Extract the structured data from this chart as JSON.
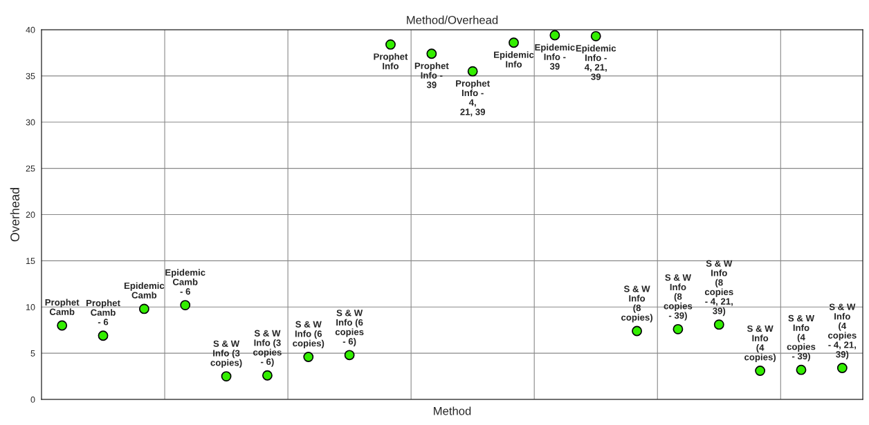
{
  "chart_data": {
    "type": "scatter",
    "title": "Method/Overhead",
    "xlabel": "Method",
    "ylabel": "Overhead",
    "categories": [
      null,
      null,
      null,
      null,
      null,
      null,
      null,
      null,
      null,
      null,
      null,
      null,
      null,
      null,
      null,
      null,
      null,
      null,
      null,
      null
    ],
    "series": [
      {
        "name": "Prophet\nCamb",
        "color": "#33ee00",
        "values": [
          8.0,
          null,
          null,
          null,
          null,
          null,
          null,
          null,
          null,
          null,
          null,
          null,
          null,
          null,
          null,
          null,
          null,
          null,
          null,
          null
        ]
      },
      {
        "name": "Prophet\nCamb\n- 6",
        "color": "#33ee00",
        "values": [
          null,
          6.9,
          null,
          null,
          null,
          null,
          null,
          null,
          null,
          null,
          null,
          null,
          null,
          null,
          null,
          null,
          null,
          null,
          null,
          null
        ]
      },
      {
        "name": "Epidemic\nCamb",
        "color": "#33ee00",
        "values": [
          null,
          null,
          9.8,
          null,
          null,
          null,
          null,
          null,
          null,
          null,
          null,
          null,
          null,
          null,
          null,
          null,
          null,
          null,
          null,
          null
        ]
      },
      {
        "name": "Epidemic\nCamb\n- 6",
        "color": "#33ee00",
        "values": [
          null,
          null,
          null,
          10.2,
          null,
          null,
          null,
          null,
          null,
          null,
          null,
          null,
          null,
          null,
          null,
          null,
          null,
          null,
          null,
          null
        ]
      },
      {
        "name": "S & W\nInfo (3\ncopies)",
        "color": "#33ee00",
        "values": [
          null,
          null,
          null,
          null,
          2.5,
          null,
          null,
          null,
          null,
          null,
          null,
          null,
          null,
          null,
          null,
          null,
          null,
          null,
          null,
          null
        ]
      },
      {
        "name": "S & W\nInfo (3\ncopies\n- 6)",
        "color": "#33ee00",
        "values": [
          null,
          null,
          null,
          null,
          null,
          2.6,
          null,
          null,
          null,
          null,
          null,
          null,
          null,
          null,
          null,
          null,
          null,
          null,
          null,
          null
        ]
      },
      {
        "name": "S & W\nInfo (6\ncopies)",
        "color": "#33ee00",
        "values": [
          null,
          null,
          null,
          null,
          null,
          null,
          4.6,
          null,
          null,
          null,
          null,
          null,
          null,
          null,
          null,
          null,
          null,
          null,
          null,
          null
        ]
      },
      {
        "name": "S & W\nInfo (6\ncopies\n- 6)",
        "color": "#33ee00",
        "values": [
          null,
          null,
          null,
          null,
          null,
          null,
          null,
          4.8,
          null,
          null,
          null,
          null,
          null,
          null,
          null,
          null,
          null,
          null,
          null,
          null
        ]
      },
      {
        "name": "Prophet\nInfo",
        "color": "#33ee00",
        "values": [
          null,
          null,
          null,
          null,
          null,
          null,
          null,
          null,
          38.4,
          null,
          null,
          null,
          null,
          null,
          null,
          null,
          null,
          null,
          null,
          null
        ]
      },
      {
        "name": "Prophet\nInfo -\n39",
        "color": "#33ee00",
        "values": [
          null,
          null,
          null,
          null,
          null,
          null,
          null,
          null,
          null,
          37.4,
          null,
          null,
          null,
          null,
          null,
          null,
          null,
          null,
          null,
          null
        ]
      },
      {
        "name": "Prophet\nInfo -\n4,\n21, 39",
        "color": "#33ee00",
        "values": [
          null,
          null,
          null,
          null,
          null,
          null,
          null,
          null,
          null,
          null,
          35.5,
          null,
          null,
          null,
          null,
          null,
          null,
          null,
          null,
          null
        ]
      },
      {
        "name": "Epidemic\nInfo",
        "color": "#33ee00",
        "values": [
          null,
          null,
          null,
          null,
          null,
          null,
          null,
          null,
          null,
          null,
          null,
          38.6,
          null,
          null,
          null,
          null,
          null,
          null,
          null,
          null
        ]
      },
      {
        "name": "Epidemic\nInfo -\n39",
        "color": "#33ee00",
        "values": [
          null,
          null,
          null,
          null,
          null,
          null,
          null,
          null,
          null,
          null,
          null,
          null,
          39.4,
          null,
          null,
          null,
          null,
          null,
          null,
          null
        ]
      },
      {
        "name": "Epidemic\nInfo -\n4, 21,\n39",
        "color": "#33ee00",
        "values": [
          null,
          null,
          null,
          null,
          null,
          null,
          null,
          null,
          null,
          null,
          null,
          null,
          null,
          39.3,
          null,
          null,
          null,
          null,
          null,
          null
        ]
      },
      {
        "name": "S & W\nInfo\n(8\ncopies)",
        "color": "#33ee00",
        "values": [
          null,
          null,
          null,
          null,
          null,
          null,
          null,
          null,
          null,
          null,
          null,
          null,
          null,
          null,
          7.4,
          null,
          null,
          null,
          null,
          null
        ]
      },
      {
        "name": "S & W\nInfo\n(8\ncopies\n- 39)",
        "color": "#33ee00",
        "values": [
          null,
          null,
          null,
          null,
          null,
          null,
          null,
          null,
          null,
          null,
          null,
          null,
          null,
          null,
          null,
          7.6,
          null,
          null,
          null,
          null
        ]
      },
      {
        "name": "S & W\nInfo\n(8\ncopies\n- 4, 21,\n39)",
        "color": "#33ee00",
        "values": [
          null,
          null,
          null,
          null,
          null,
          null,
          null,
          null,
          null,
          null,
          null,
          null,
          null,
          null,
          null,
          null,
          8.1,
          null,
          null,
          null
        ]
      },
      {
        "name": "S & W\nInfo\n(4\ncopies)",
        "color": "#33ee00",
        "values": [
          null,
          null,
          null,
          null,
          null,
          null,
          null,
          null,
          null,
          null,
          null,
          null,
          null,
          null,
          null,
          null,
          null,
          3.1,
          null,
          null
        ]
      },
      {
        "name": "S & W\nInfo\n(4\ncopies\n- 39)",
        "color": "#33ee00",
        "values": [
          null,
          null,
          null,
          null,
          null,
          null,
          null,
          null,
          null,
          null,
          null,
          null,
          null,
          null,
          null,
          null,
          null,
          null,
          3.2,
          null
        ]
      },
      {
        "name": "S & W\nInfo\n(4\ncopies\n- 4, 21,\n39)",
        "color": "#33ee00",
        "values": [
          null,
          null,
          null,
          null,
          null,
          null,
          null,
          null,
          null,
          null,
          null,
          null,
          null,
          null,
          null,
          null,
          null,
          null,
          null,
          3.4
        ]
      }
    ],
    "ylim": [
      0,
      40
    ],
    "yticks": [
      0,
      5,
      10,
      15,
      20,
      25,
      30,
      35,
      40
    ],
    "grid": true,
    "marker": "circle"
  }
}
